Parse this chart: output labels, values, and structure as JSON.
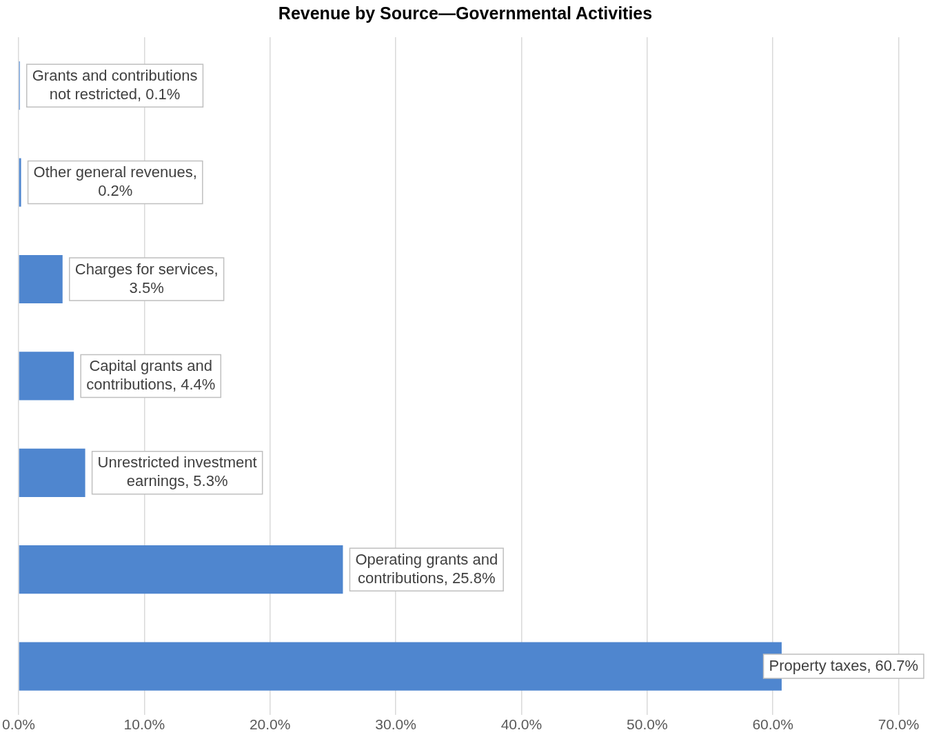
{
  "chart_data": {
    "type": "bar",
    "orientation": "horizontal",
    "title": "Revenue by Source—Governmental Activities",
    "categories": [
      null,
      null,
      null,
      null,
      null,
      null,
      null
    ],
    "values": [
      0.1,
      0.2,
      3.5,
      4.4,
      5.3,
      25.8,
      60.7
    ],
    "value_labels": [
      "Grants and contributions not restricted, 0.1%",
      "Other general revenues, 0.2%",
      "Charges for services, 3.5%",
      "Capital grants and contributions, 4.4%",
      "Unrestricted investment earnings, 5.3%",
      "Operating grants and contributions, 25.8%",
      "Property taxes, 60.7%"
    ],
    "color": "#4f86cf",
    "xlim": [
      0,
      72
    ],
    "xticks": [
      {
        "value": 0,
        "label": "0.0%"
      },
      {
        "value": 10,
        "label": "10.0%"
      },
      {
        "value": 20,
        "label": "20.0%"
      },
      {
        "value": 30,
        "label": "30.0%"
      },
      {
        "value": 40,
        "label": "40.0%"
      },
      {
        "value": 50,
        "label": "50.0%"
      },
      {
        "value": 60,
        "label": "60.0%"
      },
      {
        "value": 70,
        "label": "70.0%"
      }
    ],
    "grid": "x",
    "legend": false
  }
}
